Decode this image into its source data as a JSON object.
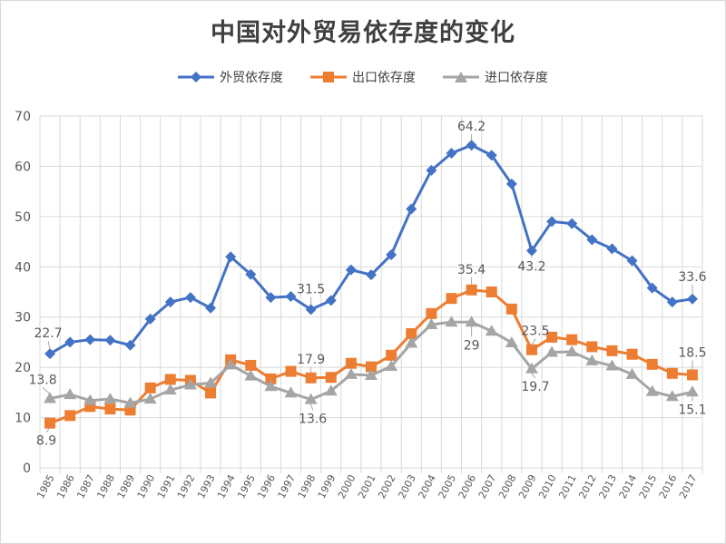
{
  "colors": {
    "series": [
      "#4472c4",
      "#ed7d31",
      "#a5a5a5"
    ],
    "grid": "#d9d9d9",
    "axis_text": "#595959",
    "label_text": "#595959"
  },
  "chart_data": {
    "type": "line",
    "title": "中国对外贸易依存度的变化",
    "xlabel": "",
    "ylabel": "",
    "ylim": [
      0,
      70
    ],
    "yticks": [
      0,
      10,
      20,
      30,
      40,
      50,
      60,
      70
    ],
    "grid": "vertical-and-horizontal",
    "legend_position": "top",
    "x": [
      "1985",
      "1986",
      "1987",
      "1988",
      "1989",
      "1990",
      "1991",
      "1992",
      "1993",
      "1994",
      "1995",
      "1996",
      "1997",
      "1998",
      "1999",
      "2000",
      "2001",
      "2002",
      "2003",
      "2004",
      "2005",
      "2006",
      "2007",
      "2008",
      "2009",
      "2010",
      "2011",
      "2012",
      "2013",
      "2014",
      "2015",
      "2016",
      "2017"
    ],
    "series": [
      {
        "name": "外贸依存度",
        "marker": "diamond",
        "values": [
          22.7,
          25.0,
          25.5,
          25.4,
          24.4,
          29.6,
          33.0,
          33.9,
          31.8,
          42.0,
          38.5,
          33.9,
          34.1,
          31.5,
          33.3,
          39.4,
          38.4,
          42.4,
          51.5,
          59.2,
          62.6,
          64.2,
          62.2,
          56.5,
          43.2,
          49.0,
          48.6,
          45.4,
          43.6,
          41.2,
          35.8,
          33.0,
          33.6
        ],
        "labels": [
          {
            "x": "1985",
            "text": "22.7"
          },
          {
            "x": "1998",
            "text": "31.5"
          },
          {
            "x": "2006",
            "text": "64.2"
          },
          {
            "x": "2009",
            "text": "43.2"
          },
          {
            "x": "2017",
            "text": "33.6"
          }
        ]
      },
      {
        "name": "出口依存度",
        "marker": "square",
        "values": [
          8.9,
          10.4,
          12.2,
          11.7,
          11.5,
          15.9,
          17.6,
          17.4,
          14.9,
          21.5,
          20.4,
          17.7,
          19.2,
          17.9,
          18.0,
          20.8,
          20.1,
          22.4,
          26.7,
          30.7,
          33.7,
          35.4,
          35.0,
          31.6,
          23.5,
          26.0,
          25.5,
          24.1,
          23.3,
          22.6,
          20.6,
          18.8,
          18.5
        ],
        "labels": [
          {
            "x": "1985",
            "text": "8.9"
          },
          {
            "x": "1998",
            "text": "17.9"
          },
          {
            "x": "2006",
            "text": "35.4"
          },
          {
            "x": "2009",
            "text": "23.5"
          },
          {
            "x": "2017",
            "text": "18.5"
          }
        ]
      },
      {
        "name": "进口依存度",
        "marker": "triangle",
        "values": [
          13.8,
          14.6,
          13.4,
          13.7,
          12.9,
          13.7,
          15.5,
          16.5,
          16.9,
          20.5,
          18.3,
          16.2,
          14.9,
          13.6,
          15.3,
          18.6,
          18.4,
          20.2,
          24.8,
          28.5,
          29.0,
          29.0,
          27.2,
          24.9,
          19.7,
          23.0,
          23.1,
          21.3,
          20.3,
          18.6,
          15.2,
          14.2,
          15.1
        ],
        "labels": [
          {
            "x": "1985",
            "text": "13.8"
          },
          {
            "x": "1998",
            "text": "13.6"
          },
          {
            "x": "2006",
            "text": "29"
          },
          {
            "x": "2009",
            "text": "19.7"
          },
          {
            "x": "2017",
            "text": "15.1"
          }
        ]
      }
    ]
  }
}
